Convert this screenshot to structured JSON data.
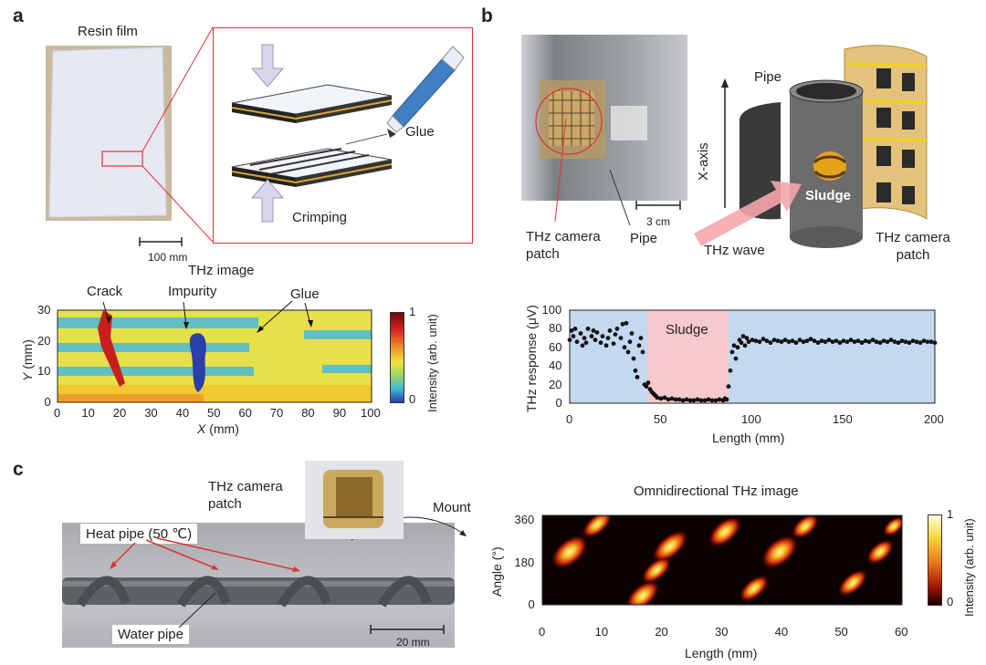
{
  "panels": [
    "a",
    "b",
    "c"
  ],
  "panel_a": {
    "photo_label": "Resin film",
    "scale_bar": "100 mm",
    "glue_label": "Glue",
    "crimping_label": "Crimping",
    "image_title": "THz image",
    "annotations": [
      "Crack",
      "Impurity",
      "Glue"
    ],
    "x_axis": {
      "label": "X (mm)",
      "label_var": "X",
      "label_unit": " (mm)",
      "ticks": [
        "0",
        "10",
        "20",
        "30",
        "40",
        "50",
        "60",
        "70",
        "80",
        "90",
        "100"
      ]
    },
    "y_axis": {
      "label": "Y (mm)",
      "label_var": "Y",
      "label_unit": " (mm)",
      "ticks": [
        "0",
        "10",
        "20",
        "30"
      ]
    },
    "colorbar": {
      "label": "Intensity (arb. unit)",
      "max": "1",
      "min": "0"
    }
  },
  "panel_b": {
    "photo_labels": [
      "THz camera patch",
      "Pipe",
      "3 cm"
    ],
    "diagram_labels": {
      "pipe": "Pipe",
      "axis": "X-axis",
      "sludge": "Sludge",
      "wave": "THz wave",
      "patch": "THz camera patch"
    }
  },
  "chart_data": {
    "type": "scatter",
    "xlabel": "Length (mm)",
    "ylabel": "THz response (μV)",
    "xlim": [
      0,
      200
    ],
    "ylim": [
      0,
      100
    ],
    "x_ticks": [
      "0",
      "50",
      "100",
      "150",
      "200"
    ],
    "y_ticks": [
      "0",
      "20",
      "40",
      "60",
      "80",
      "100"
    ],
    "highlight": {
      "label": "Sludge",
      "x_range": [
        43,
        87
      ]
    },
    "points": [
      [
        0,
        68
      ],
      [
        1,
        78
      ],
      [
        2,
        72
      ],
      [
        3,
        80
      ],
      [
        4,
        66
      ],
      [
        6,
        75
      ],
      [
        7,
        62
      ],
      [
        8,
        70
      ],
      [
        9,
        65
      ],
      [
        10,
        80
      ],
      [
        12,
        72
      ],
      [
        13,
        78
      ],
      [
        14,
        68
      ],
      [
        15,
        76
      ],
      [
        17,
        65
      ],
      [
        18,
        72
      ],
      [
        20,
        62
      ],
      [
        21,
        70
      ],
      [
        22,
        78
      ],
      [
        24,
        64
      ],
      [
        25,
        74
      ],
      [
        26,
        80
      ],
      [
        28,
        70
      ],
      [
        29,
        85
      ],
      [
        30,
        60
      ],
      [
        31,
        86
      ],
      [
        32,
        55
      ],
      [
        33,
        66
      ],
      [
        34,
        75
      ],
      [
        35,
        48
      ],
      [
        36,
        35
      ],
      [
        37,
        28
      ],
      [
        38,
        62
      ],
      [
        39,
        70
      ],
      [
        40,
        55
      ],
      [
        41,
        20
      ],
      [
        42,
        18
      ],
      [
        43,
        22
      ],
      [
        44,
        15
      ],
      [
        45,
        12
      ],
      [
        46,
        10
      ],
      [
        47,
        8
      ],
      [
        48,
        6
      ],
      [
        50,
        5
      ],
      [
        52,
        6
      ],
      [
        54,
        4
      ],
      [
        56,
        5
      ],
      [
        58,
        4
      ],
      [
        60,
        4
      ],
      [
        62,
        3
      ],
      [
        64,
        4
      ],
      [
        66,
        3
      ],
      [
        68,
        3
      ],
      [
        70,
        4
      ],
      [
        72,
        3
      ],
      [
        74,
        3
      ],
      [
        76,
        4
      ],
      [
        78,
        3
      ],
      [
        80,
        3
      ],
      [
        82,
        4
      ],
      [
        84,
        3
      ],
      [
        85,
        5
      ],
      [
        86,
        4
      ],
      [
        87,
        18
      ],
      [
        88,
        35
      ],
      [
        89,
        55
      ],
      [
        90,
        62
      ],
      [
        91,
        48
      ],
      [
        92,
        60
      ],
      [
        93,
        68
      ],
      [
        94,
        65
      ],
      [
        95,
        72
      ],
      [
        96,
        62
      ],
      [
        97,
        70
      ],
      [
        98,
        66
      ],
      [
        100,
        68
      ],
      [
        102,
        67
      ],
      [
        104,
        66
      ],
      [
        106,
        69
      ],
      [
        108,
        67
      ],
      [
        110,
        65
      ],
      [
        112,
        68
      ],
      [
        114,
        67
      ],
      [
        116,
        66
      ],
      [
        118,
        68
      ],
      [
        120,
        66
      ],
      [
        122,
        67
      ],
      [
        124,
        65
      ],
      [
        126,
        68
      ],
      [
        128,
        66
      ],
      [
        130,
        67
      ],
      [
        132,
        69
      ],
      [
        134,
        67
      ],
      [
        136,
        65
      ],
      [
        138,
        67
      ],
      [
        140,
        66
      ],
      [
        142,
        68
      ],
      [
        144,
        66
      ],
      [
        146,
        67
      ],
      [
        148,
        65
      ],
      [
        150,
        67
      ],
      [
        152,
        66
      ],
      [
        154,
        68
      ],
      [
        156,
        66
      ],
      [
        158,
        67
      ],
      [
        160,
        65
      ],
      [
        162,
        67
      ],
      [
        164,
        66
      ],
      [
        166,
        68
      ],
      [
        168,
        66
      ],
      [
        170,
        65
      ],
      [
        172,
        67
      ],
      [
        174,
        66
      ],
      [
        176,
        68
      ],
      [
        178,
        66
      ],
      [
        180,
        65
      ],
      [
        182,
        67
      ],
      [
        184,
        66
      ],
      [
        186,
        65
      ],
      [
        188,
        67
      ],
      [
        190,
        66
      ],
      [
        192,
        65
      ],
      [
        194,
        67
      ],
      [
        196,
        66
      ],
      [
        198,
        66
      ],
      [
        200,
        65
      ]
    ]
  },
  "panel_c": {
    "patch_label": "THz camera patch",
    "mount_label": "Mount",
    "heat_pipe_label": "Heat pipe (50 ℃)",
    "water_pipe_label": "Water pipe",
    "scale_bar": "20 mm",
    "image_title": "Omnidirectional THz image",
    "x_axis": {
      "label": "Length (mm)",
      "ticks": [
        "0",
        "10",
        "20",
        "30",
        "40",
        "50",
        "60"
      ]
    },
    "y_axis": {
      "label": "Angle (°)",
      "ticks": [
        "0",
        "180",
        "360"
      ]
    },
    "colorbar": {
      "label": "Intensity (arb. unit)",
      "max": "1",
      "min": "0"
    }
  }
}
